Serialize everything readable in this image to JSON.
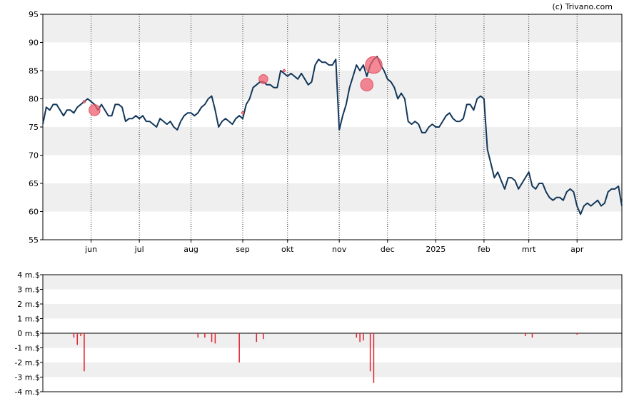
{
  "watermark": "(c) Trivano.com",
  "chart_data": [
    {
      "type": "line",
      "x_ticks": [
        "jun",
        "jul",
        "aug",
        "sep",
        "okt",
        "nov",
        "dec",
        "2025",
        "feb",
        "mrt",
        "apr"
      ],
      "y_ticks": [
        "55",
        "60",
        "65",
        "70",
        "75",
        "80",
        "85",
        "90",
        "95"
      ],
      "ylim": [
        55,
        95
      ],
      "grid": "alternating horizontal bands, dotted vertical lines at month ticks",
      "line_color": "#12375a",
      "series": [
        {
          "points": [
            [
              0,
              75.5
            ],
            [
              1,
              78.5
            ],
            [
              2,
              78
            ],
            [
              3,
              79
            ],
            [
              4,
              79
            ],
            [
              5,
              78
            ],
            [
              6,
              77
            ],
            [
              7,
              78
            ],
            [
              8,
              78
            ],
            [
              9,
              77.5
            ],
            [
              10,
              78.5
            ],
            [
              11,
              79
            ],
            [
              12,
              79.5
            ],
            [
              13,
              80
            ],
            [
              14,
              79.5
            ],
            [
              15,
              79
            ],
            [
              16,
              78
            ],
            [
              17,
              79
            ],
            [
              18,
              78
            ],
            [
              19,
              77
            ],
            [
              20,
              77
            ],
            [
              21,
              79
            ],
            [
              22,
              79
            ],
            [
              23,
              78.5
            ],
            [
              24,
              76
            ],
            [
              25,
              76.5
            ],
            [
              26,
              76.5
            ],
            [
              27,
              77
            ],
            [
              28,
              76.5
            ],
            [
              29,
              77
            ],
            [
              30,
              76
            ],
            [
              31,
              76
            ],
            [
              32,
              75.5
            ],
            [
              33,
              75
            ],
            [
              34,
              76.5
            ],
            [
              35,
              76
            ],
            [
              36,
              75.5
            ],
            [
              37,
              76
            ],
            [
              38,
              75
            ],
            [
              39,
              74.5
            ],
            [
              40,
              76
            ],
            [
              41,
              77
            ],
            [
              42,
              77.5
            ],
            [
              43,
              77.5
            ],
            [
              44,
              77
            ],
            [
              45,
              77.5
            ],
            [
              46,
              78.5
            ],
            [
              47,
              79
            ],
            [
              48,
              80
            ],
            [
              49,
              80.5
            ],
            [
              50,
              78
            ],
            [
              51,
              75
            ],
            [
              52,
              76
            ],
            [
              53,
              76.5
            ],
            [
              54,
              76
            ],
            [
              55,
              75.5
            ],
            [
              56,
              76.5
            ],
            [
              57,
              77
            ],
            [
              58,
              76.5
            ],
            [
              59,
              79
            ],
            [
              60,
              80
            ],
            [
              61,
              82
            ],
            [
              62,
              82.5
            ],
            [
              63,
              83
            ],
            [
              64,
              83
            ],
            [
              65,
              82.5
            ],
            [
              66,
              82.5
            ],
            [
              67,
              82
            ],
            [
              68,
              82
            ],
            [
              69,
              85
            ],
            [
              70,
              84.5
            ],
            [
              71,
              84
            ],
            [
              72,
              84.5
            ],
            [
              73,
              84
            ],
            [
              74,
              83.5
            ],
            [
              75,
              84.5
            ],
            [
              76,
              83.5
            ],
            [
              77,
              82.5
            ],
            [
              78,
              83
            ],
            [
              79,
              86
            ],
            [
              80,
              87
            ],
            [
              81,
              86.5
            ],
            [
              82,
              86.5
            ],
            [
              83,
              86
            ],
            [
              84,
              86
            ],
            [
              85,
              87
            ],
            [
              86,
              74.5
            ],
            [
              87,
              77
            ],
            [
              88,
              79
            ],
            [
              89,
              82
            ],
            [
              90,
              84
            ],
            [
              91,
              86
            ],
            [
              92,
              85
            ],
            [
              93,
              86
            ],
            [
              94,
              84
            ],
            [
              95,
              86
            ],
            [
              96,
              87
            ],
            [
              97,
              87.5
            ],
            [
              98,
              86
            ],
            [
              99,
              85
            ],
            [
              100,
              83.5
            ],
            [
              101,
              83
            ],
            [
              102,
              82
            ],
            [
              103,
              80
            ],
            [
              104,
              81
            ],
            [
              105,
              80
            ],
            [
              106,
              76
            ],
            [
              107,
              75.5
            ],
            [
              108,
              76
            ],
            [
              109,
              75.5
            ],
            [
              110,
              74
            ],
            [
              111,
              74
            ],
            [
              112,
              75
            ],
            [
              113,
              75.5
            ],
            [
              114,
              75
            ],
            [
              115,
              75
            ],
            [
              116,
              76
            ],
            [
              117,
              77
            ],
            [
              118,
              77.5
            ],
            [
              119,
              76.5
            ],
            [
              120,
              76
            ],
            [
              121,
              76
            ],
            [
              122,
              76.5
            ],
            [
              123,
              79
            ],
            [
              124,
              79
            ],
            [
              125,
              78
            ],
            [
              126,
              80
            ],
            [
              127,
              80.5
            ],
            [
              128,
              80
            ],
            [
              129,
              71
            ],
            [
              130,
              68.5
            ],
            [
              131,
              66
            ],
            [
              132,
              67
            ],
            [
              133,
              65.5
            ],
            [
              134,
              64
            ],
            [
              135,
              66
            ],
            [
              136,
              66
            ],
            [
              137,
              65.5
            ],
            [
              138,
              64
            ],
            [
              139,
              65
            ],
            [
              140,
              66
            ],
            [
              141,
              67
            ],
            [
              142,
              64.5
            ],
            [
              143,
              64
            ],
            [
              144,
              65
            ],
            [
              145,
              65
            ],
            [
              146,
              63.5
            ],
            [
              147,
              62.5
            ],
            [
              148,
              62
            ],
            [
              149,
              62.5
            ],
            [
              150,
              62.5
            ],
            [
              151,
              62
            ],
            [
              152,
              63.5
            ],
            [
              153,
              64
            ],
            [
              154,
              63.5
            ],
            [
              155,
              61
            ],
            [
              156,
              59.5
            ],
            [
              157,
              61
            ],
            [
              158,
              61.5
            ],
            [
              159,
              61
            ],
            [
              160,
              61.5
            ],
            [
              161,
              62
            ],
            [
              162,
              61
            ],
            [
              163,
              61.5
            ],
            [
              164,
              63.5
            ],
            [
              165,
              64
            ],
            [
              166,
              64
            ],
            [
              167,
              64.5
            ],
            [
              168,
              61
            ]
          ]
        }
      ],
      "markers": [
        {
          "x": 12,
          "y": 79.5,
          "size": 1.0
        },
        {
          "x": 15,
          "y": 78,
          "size": 7.0
        },
        {
          "x": 58,
          "y": 77.5,
          "size": 1.0
        },
        {
          "x": 64,
          "y": 83.5,
          "size": 5.5
        },
        {
          "x": 70,
          "y": 85,
          "size": 1.0
        },
        {
          "x": 94,
          "y": 82.5,
          "size": 8.0
        },
        {
          "x": 96,
          "y": 86,
          "size": 11.0
        }
      ],
      "marker_color": "#f06070",
      "x_tick_positions": [
        14,
        28,
        43,
        58,
        71,
        86,
        100,
        114,
        128,
        141,
        155
      ]
    },
    {
      "type": "bar",
      "y_ticks": [
        "4 m.$",
        "3 m.$",
        "2 m.$",
        "1 m.$",
        "0 m.$",
        "-1 m.$",
        "-2 m.$",
        "-3 m.$",
        "-4 m.$"
      ],
      "ylim": [
        -4,
        4
      ],
      "bar_color": "#e0202c",
      "values": [
        [
          9,
          -0.3
        ],
        [
          10,
          -0.8
        ],
        [
          11,
          -0.2
        ],
        [
          12,
          -2.6
        ],
        [
          45,
          -0.3
        ],
        [
          47,
          -0.3
        ],
        [
          49,
          -0.6
        ],
        [
          50,
          -0.7
        ],
        [
          57,
          -2.0
        ],
        [
          62,
          -0.6
        ],
        [
          64,
          -0.4
        ],
        [
          91,
          -0.3
        ],
        [
          92,
          -0.6
        ],
        [
          93,
          -0.5
        ],
        [
          95,
          -2.6
        ],
        [
          96,
          -3.4
        ],
        [
          140,
          -0.2
        ],
        [
          142,
          -0.3
        ],
        [
          155,
          -0.1
        ]
      ]
    }
  ]
}
